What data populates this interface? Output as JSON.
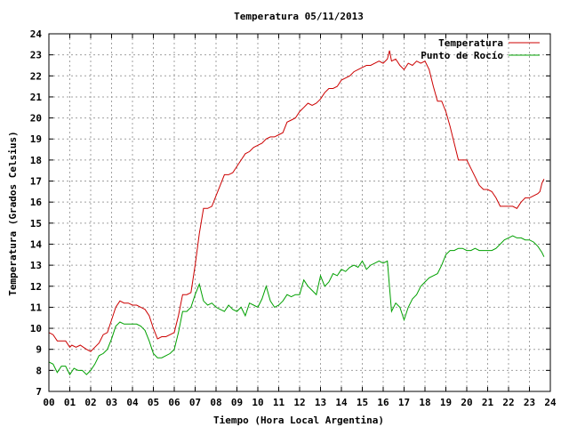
{
  "chart_data": {
    "type": "line",
    "title": "Temperatura 05/11/2013",
    "xlabel": "Tiempo (Hora Local Argentina)",
    "ylabel": "Temperatura (Grados Celsius)",
    "xlim": [
      0,
      24
    ],
    "ylim": [
      7,
      24
    ],
    "x_ticks": [
      0,
      1,
      2,
      3,
      4,
      5,
      6,
      7,
      8,
      9,
      10,
      11,
      12,
      13,
      14,
      15,
      16,
      17,
      18,
      19,
      20,
      21,
      22,
      23,
      24
    ],
    "x_tick_labels": [
      "00",
      "01",
      "02",
      "03",
      "04",
      "05",
      "06",
      "07",
      "08",
      "09",
      "10",
      "11",
      "12",
      "13",
      "14",
      "15",
      "16",
      "17",
      "18",
      "19",
      "20",
      "21",
      "22",
      "23",
      "24"
    ],
    "y_ticks": [
      7,
      8,
      9,
      10,
      11,
      12,
      13,
      14,
      15,
      16,
      17,
      18,
      19,
      20,
      21,
      22,
      23,
      24
    ],
    "grid": true,
    "legend_position": "top-right",
    "series": [
      {
        "name": "Temperatura",
        "color": "#cc0000",
        "points": [
          [
            0.0,
            9.8
          ],
          [
            0.2,
            9.7
          ],
          [
            0.4,
            9.4
          ],
          [
            0.6,
            9.4
          ],
          [
            0.8,
            9.4
          ],
          [
            1.0,
            9.1
          ],
          [
            1.1,
            9.2
          ],
          [
            1.3,
            9.1
          ],
          [
            1.5,
            9.2
          ],
          [
            1.8,
            9.0
          ],
          [
            2.0,
            8.9
          ],
          [
            2.2,
            9.1
          ],
          [
            2.4,
            9.3
          ],
          [
            2.6,
            9.7
          ],
          [
            2.8,
            9.8
          ],
          [
            3.0,
            10.4
          ],
          [
            3.2,
            11.0
          ],
          [
            3.4,
            11.3
          ],
          [
            3.6,
            11.2
          ],
          [
            3.8,
            11.2
          ],
          [
            4.0,
            11.1
          ],
          [
            4.2,
            11.1
          ],
          [
            4.4,
            11.0
          ],
          [
            4.6,
            10.9
          ],
          [
            4.8,
            10.6
          ],
          [
            5.0,
            10.0
          ],
          [
            5.2,
            9.5
          ],
          [
            5.4,
            9.6
          ],
          [
            5.6,
            9.6
          ],
          [
            5.8,
            9.7
          ],
          [
            6.0,
            9.8
          ],
          [
            6.2,
            10.6
          ],
          [
            6.4,
            11.6
          ],
          [
            6.6,
            11.6
          ],
          [
            6.8,
            11.7
          ],
          [
            7.0,
            13.0
          ],
          [
            7.2,
            14.5
          ],
          [
            7.4,
            15.7
          ],
          [
            7.6,
            15.7
          ],
          [
            7.8,
            15.8
          ],
          [
            8.0,
            16.3
          ],
          [
            8.2,
            16.8
          ],
          [
            8.4,
            17.3
          ],
          [
            8.6,
            17.3
          ],
          [
            8.8,
            17.4
          ],
          [
            9.0,
            17.7
          ],
          [
            9.2,
            18.0
          ],
          [
            9.4,
            18.3
          ],
          [
            9.6,
            18.4
          ],
          [
            9.8,
            18.6
          ],
          [
            10.0,
            18.7
          ],
          [
            10.2,
            18.8
          ],
          [
            10.4,
            19.0
          ],
          [
            10.6,
            19.1
          ],
          [
            10.8,
            19.1
          ],
          [
            11.0,
            19.2
          ],
          [
            11.2,
            19.3
          ],
          [
            11.4,
            19.8
          ],
          [
            11.6,
            19.9
          ],
          [
            11.8,
            20.0
          ],
          [
            12.0,
            20.3
          ],
          [
            12.2,
            20.5
          ],
          [
            12.4,
            20.7
          ],
          [
            12.6,
            20.6
          ],
          [
            12.8,
            20.7
          ],
          [
            13.0,
            20.9
          ],
          [
            13.2,
            21.2
          ],
          [
            13.4,
            21.4
          ],
          [
            13.6,
            21.4
          ],
          [
            13.8,
            21.5
          ],
          [
            14.0,
            21.8
          ],
          [
            14.2,
            21.9
          ],
          [
            14.4,
            22.0
          ],
          [
            14.6,
            22.2
          ],
          [
            14.8,
            22.3
          ],
          [
            15.0,
            22.4
          ],
          [
            15.2,
            22.5
          ],
          [
            15.4,
            22.5
          ],
          [
            15.6,
            22.6
          ],
          [
            15.8,
            22.7
          ],
          [
            16.0,
            22.6
          ],
          [
            16.2,
            22.8
          ],
          [
            16.3,
            23.2
          ],
          [
            16.4,
            22.7
          ],
          [
            16.6,
            22.8
          ],
          [
            16.8,
            22.5
          ],
          [
            17.0,
            22.3
          ],
          [
            17.2,
            22.6
          ],
          [
            17.4,
            22.5
          ],
          [
            17.6,
            22.7
          ],
          [
            17.8,
            22.6
          ],
          [
            18.0,
            22.7
          ],
          [
            18.2,
            22.3
          ],
          [
            18.4,
            21.5
          ],
          [
            18.6,
            20.8
          ],
          [
            18.8,
            20.8
          ],
          [
            19.0,
            20.3
          ],
          [
            19.2,
            19.6
          ],
          [
            19.4,
            18.8
          ],
          [
            19.6,
            18.0
          ],
          [
            19.8,
            18.0
          ],
          [
            20.0,
            18.0
          ],
          [
            20.2,
            17.6
          ],
          [
            20.4,
            17.2
          ],
          [
            20.6,
            16.8
          ],
          [
            20.8,
            16.6
          ],
          [
            21.0,
            16.6
          ],
          [
            21.2,
            16.5
          ],
          [
            21.4,
            16.2
          ],
          [
            21.6,
            15.8
          ],
          [
            21.8,
            15.8
          ],
          [
            22.0,
            15.8
          ],
          [
            22.2,
            15.8
          ],
          [
            22.4,
            15.7
          ],
          [
            22.6,
            16.0
          ],
          [
            22.8,
            16.2
          ],
          [
            23.0,
            16.2
          ],
          [
            23.2,
            16.3
          ],
          [
            23.4,
            16.4
          ],
          [
            23.5,
            16.5
          ],
          [
            23.6,
            16.9
          ],
          [
            23.7,
            17.1
          ]
        ]
      },
      {
        "name": "Punto de Rocío",
        "color": "#00a000",
        "points": [
          [
            0.0,
            8.4
          ],
          [
            0.2,
            8.3
          ],
          [
            0.4,
            7.9
          ],
          [
            0.6,
            8.2
          ],
          [
            0.8,
            8.2
          ],
          [
            1.0,
            7.8
          ],
          [
            1.2,
            8.1
          ],
          [
            1.4,
            8.0
          ],
          [
            1.6,
            8.0
          ],
          [
            1.8,
            7.8
          ],
          [
            2.0,
            8.0
          ],
          [
            2.2,
            8.3
          ],
          [
            2.4,
            8.7
          ],
          [
            2.6,
            8.8
          ],
          [
            2.8,
            9.0
          ],
          [
            3.0,
            9.5
          ],
          [
            3.2,
            10.1
          ],
          [
            3.4,
            10.3
          ],
          [
            3.6,
            10.2
          ],
          [
            3.8,
            10.2
          ],
          [
            4.0,
            10.2
          ],
          [
            4.2,
            10.2
          ],
          [
            4.4,
            10.1
          ],
          [
            4.6,
            9.9
          ],
          [
            4.8,
            9.4
          ],
          [
            5.0,
            8.8
          ],
          [
            5.2,
            8.6
          ],
          [
            5.4,
            8.6
          ],
          [
            5.6,
            8.7
          ],
          [
            5.8,
            8.8
          ],
          [
            6.0,
            9.0
          ],
          [
            6.2,
            9.8
          ],
          [
            6.4,
            10.8
          ],
          [
            6.6,
            10.8
          ],
          [
            6.8,
            11.0
          ],
          [
            7.0,
            11.6
          ],
          [
            7.2,
            12.1
          ],
          [
            7.4,
            11.3
          ],
          [
            7.6,
            11.1
          ],
          [
            7.8,
            11.2
          ],
          [
            8.0,
            11.0
          ],
          [
            8.2,
            10.9
          ],
          [
            8.4,
            10.8
          ],
          [
            8.6,
            11.1
          ],
          [
            8.8,
            10.9
          ],
          [
            9.0,
            10.8
          ],
          [
            9.2,
            11.0
          ],
          [
            9.4,
            10.6
          ],
          [
            9.6,
            11.2
          ],
          [
            9.8,
            11.1
          ],
          [
            10.0,
            11.0
          ],
          [
            10.2,
            11.4
          ],
          [
            10.4,
            12.0
          ],
          [
            10.6,
            11.3
          ],
          [
            10.8,
            11.0
          ],
          [
            11.0,
            11.1
          ],
          [
            11.2,
            11.3
          ],
          [
            11.4,
            11.6
          ],
          [
            11.6,
            11.5
          ],
          [
            11.8,
            11.6
          ],
          [
            12.0,
            11.6
          ],
          [
            12.2,
            12.3
          ],
          [
            12.4,
            12.0
          ],
          [
            12.6,
            11.8
          ],
          [
            12.8,
            11.6
          ],
          [
            13.0,
            12.5
          ],
          [
            13.2,
            12.0
          ],
          [
            13.4,
            12.2
          ],
          [
            13.6,
            12.6
          ],
          [
            13.8,
            12.5
          ],
          [
            14.0,
            12.8
          ],
          [
            14.2,
            12.7
          ],
          [
            14.4,
            12.9
          ],
          [
            14.6,
            13.0
          ],
          [
            14.8,
            12.9
          ],
          [
            15.0,
            13.2
          ],
          [
            15.2,
            12.8
          ],
          [
            15.4,
            13.0
          ],
          [
            15.6,
            13.1
          ],
          [
            15.8,
            13.2
          ],
          [
            16.0,
            13.1
          ],
          [
            16.2,
            13.2
          ],
          [
            16.4,
            10.8
          ],
          [
            16.6,
            11.2
          ],
          [
            16.8,
            11.0
          ],
          [
            17.0,
            10.4
          ],
          [
            17.2,
            11.0
          ],
          [
            17.4,
            11.4
          ],
          [
            17.6,
            11.6
          ],
          [
            17.8,
            12.0
          ],
          [
            18.0,
            12.2
          ],
          [
            18.2,
            12.4
          ],
          [
            18.4,
            12.5
          ],
          [
            18.6,
            12.6
          ],
          [
            18.8,
            13.0
          ],
          [
            19.0,
            13.5
          ],
          [
            19.2,
            13.7
          ],
          [
            19.4,
            13.7
          ],
          [
            19.6,
            13.8
          ],
          [
            19.8,
            13.8
          ],
          [
            20.0,
            13.7
          ],
          [
            20.2,
            13.7
          ],
          [
            20.4,
            13.8
          ],
          [
            20.6,
            13.7
          ],
          [
            20.8,
            13.7
          ],
          [
            21.0,
            13.7
          ],
          [
            21.2,
            13.7
          ],
          [
            21.4,
            13.8
          ],
          [
            21.6,
            14.0
          ],
          [
            21.8,
            14.2
          ],
          [
            22.0,
            14.3
          ],
          [
            22.2,
            14.4
          ],
          [
            22.4,
            14.3
          ],
          [
            22.6,
            14.3
          ],
          [
            22.8,
            14.2
          ],
          [
            23.0,
            14.2
          ],
          [
            23.2,
            14.1
          ],
          [
            23.4,
            13.9
          ],
          [
            23.6,
            13.6
          ],
          [
            23.7,
            13.4
          ]
        ]
      }
    ]
  }
}
